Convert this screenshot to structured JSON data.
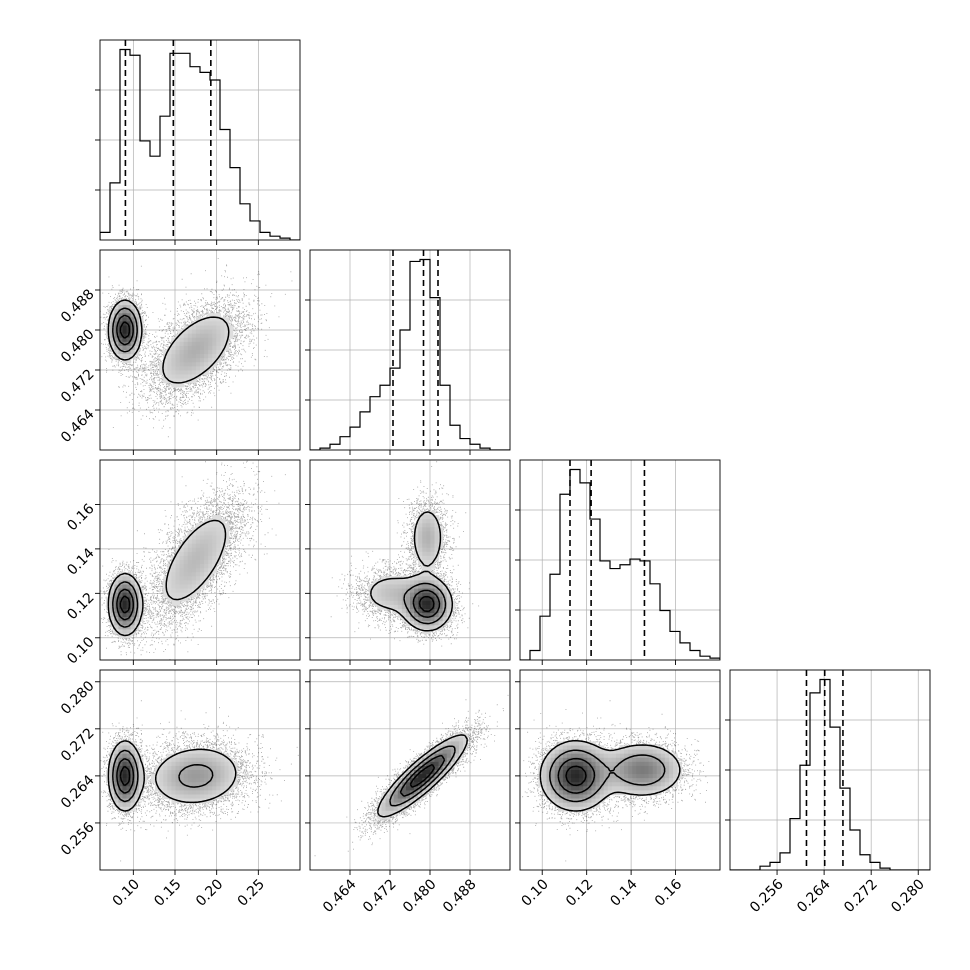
{
  "chart_data": {
    "type": "corner",
    "title": "",
    "grid": true,
    "params": [
      {
        "label": "",
        "range": [
          0.06,
          0.3
        ],
        "ticks": [
          0.1,
          0.15,
          0.2,
          0.25
        ],
        "tick_labels": [
          "0.10",
          "0.15",
          "0.20",
          "0.25"
        ],
        "quantiles": [
          0.0905,
          0.148,
          0.193
        ],
        "hist": {
          "bin_edges": [
            0.06,
            0.072,
            0.084,
            0.096,
            0.108,
            0.12,
            0.132,
            0.144,
            0.156,
            0.168,
            0.18,
            0.192,
            0.204,
            0.216,
            0.228,
            0.24,
            0.252,
            0.264,
            0.276,
            0.288,
            0.3
          ],
          "counts": [
            0.04,
            0.3,
            1.0,
            0.97,
            0.52,
            0.44,
            0.65,
            0.98,
            0.98,
            0.91,
            0.88,
            0.84,
            0.58,
            0.38,
            0.19,
            0.1,
            0.04,
            0.02,
            0.01,
            0.0
          ]
        }
      },
      {
        "label": "",
        "range": [
          0.456,
          0.496
        ],
        "ticks": [
          0.464,
          0.472,
          0.48,
          0.488
        ],
        "tick_labels": [
          "0.464",
          "0.472",
          "0.480",
          "0.488"
        ],
        "quantiles": [
          0.4726,
          0.4787,
          0.4816
        ],
        "hist": {
          "bin_edges": [
            0.456,
            0.458,
            0.46,
            0.462,
            0.464,
            0.466,
            0.468,
            0.47,
            0.472,
            0.474,
            0.476,
            0.478,
            0.48,
            0.482,
            0.484,
            0.486,
            0.488,
            0.49,
            0.492,
            0.494,
            0.496
          ],
          "counts": [
            0.0,
            0.01,
            0.03,
            0.07,
            0.12,
            0.2,
            0.28,
            0.34,
            0.43,
            0.63,
            0.99,
            1.0,
            0.8,
            0.34,
            0.13,
            0.06,
            0.03,
            0.01,
            0.0,
            0.0
          ]
        }
      },
      {
        "label": "",
        "range": [
          0.09,
          0.18
        ],
        "ticks": [
          0.1,
          0.12,
          0.14,
          0.16
        ],
        "tick_labels": [
          "0.10",
          "0.12",
          "0.14",
          "0.16"
        ],
        "quantiles": [
          0.1125,
          0.122,
          0.146
        ],
        "hist": {
          "bin_edges": [
            0.09,
            0.0945,
            0.099,
            0.1035,
            0.108,
            0.1125,
            0.117,
            0.1215,
            0.126,
            0.1305,
            0.135,
            0.1395,
            0.144,
            0.1485,
            0.153,
            0.1575,
            0.162,
            0.1665,
            0.171,
            0.1755,
            0.18
          ],
          "counts": [
            0.0,
            0.05,
            0.23,
            0.45,
            0.87,
            1.0,
            0.93,
            0.74,
            0.52,
            0.48,
            0.5,
            0.53,
            0.52,
            0.4,
            0.26,
            0.15,
            0.09,
            0.05,
            0.02,
            0.01
          ]
        }
      },
      {
        "label": "",
        "range": [
          0.248,
          0.282
        ],
        "ticks": [
          0.256,
          0.264,
          0.272,
          0.28
        ],
        "tick_labels": [
          "0.256",
          "0.264",
          "0.272",
          "0.280"
        ],
        "quantiles": [
          0.261,
          0.2641,
          0.2672
        ],
        "hist": {
          "bin_edges": [
            0.248,
            0.2497,
            0.2514,
            0.2531,
            0.2548,
            0.2565,
            0.2582,
            0.2599,
            0.2616,
            0.2633,
            0.265,
            0.2667,
            0.2684,
            0.2701,
            0.2718,
            0.2735,
            0.2752,
            0.2769,
            0.2786,
            0.2803,
            0.282
          ],
          "counts": [
            0.0,
            0.0,
            0.0,
            0.02,
            0.04,
            0.09,
            0.27,
            0.55,
            0.93,
            1.0,
            0.75,
            0.43,
            0.21,
            0.08,
            0.04,
            0.01,
            0.0,
            0.0,
            0.0,
            0.0
          ]
        }
      }
    ],
    "pairs": [
      {
        "x_param": 0,
        "y_param": 1,
        "components": [
          {
            "w": 0.42,
            "mx": 0.09,
            "my": 0.48,
            "sx": 0.01,
            "sy": 0.003,
            "r": 0.0
          },
          {
            "w": 0.58,
            "mx": 0.175,
            "my": 0.476,
            "sx": 0.03,
            "sy": 0.005,
            "r": 0.55
          }
        ]
      },
      {
        "x_param": 0,
        "y_param": 2,
        "components": [
          {
            "w": 0.42,
            "mx": 0.09,
            "my": 0.115,
            "sx": 0.01,
            "sy": 0.007,
            "r": 0.0
          },
          {
            "w": 0.58,
            "mx": 0.175,
            "my": 0.135,
            "sx": 0.03,
            "sy": 0.015,
            "r": 0.65
          }
        ]
      },
      {
        "x_param": 1,
        "y_param": 2,
        "components": [
          {
            "w": 0.55,
            "mx": 0.4795,
            "my": 0.115,
            "sx": 0.0025,
            "sy": 0.006,
            "r": 0.0
          },
          {
            "w": 0.22,
            "mx": 0.4795,
            "my": 0.145,
            "sx": 0.002,
            "sy": 0.009,
            "r": 0.0
          },
          {
            "w": 0.23,
            "mx": 0.4725,
            "my": 0.12,
            "sx": 0.004,
            "sy": 0.006,
            "r": 0.0
          }
        ]
      },
      {
        "x_param": 0,
        "y_param": 3,
        "components": [
          {
            "w": 0.42,
            "mx": 0.09,
            "my": 0.264,
            "sx": 0.01,
            "sy": 0.003,
            "r": 0.0
          },
          {
            "w": 0.58,
            "mx": 0.175,
            "my": 0.264,
            "sx": 0.032,
            "sy": 0.003,
            "r": 0.1
          }
        ]
      },
      {
        "x_param": 1,
        "y_param": 3,
        "components": [
          {
            "w": 1.0,
            "mx": 0.4785,
            "my": 0.264,
            "sx": 0.0045,
            "sy": 0.0035,
            "r": 0.88
          }
        ]
      },
      {
        "x_param": 2,
        "y_param": 3,
        "components": [
          {
            "w": 0.62,
            "mx": 0.115,
            "my": 0.264,
            "sx": 0.008,
            "sy": 0.003,
            "r": 0.0
          },
          {
            "w": 0.38,
            "mx": 0.145,
            "my": 0.265,
            "sx": 0.01,
            "sy": 0.0025,
            "r": 0.0
          }
        ]
      }
    ]
  }
}
